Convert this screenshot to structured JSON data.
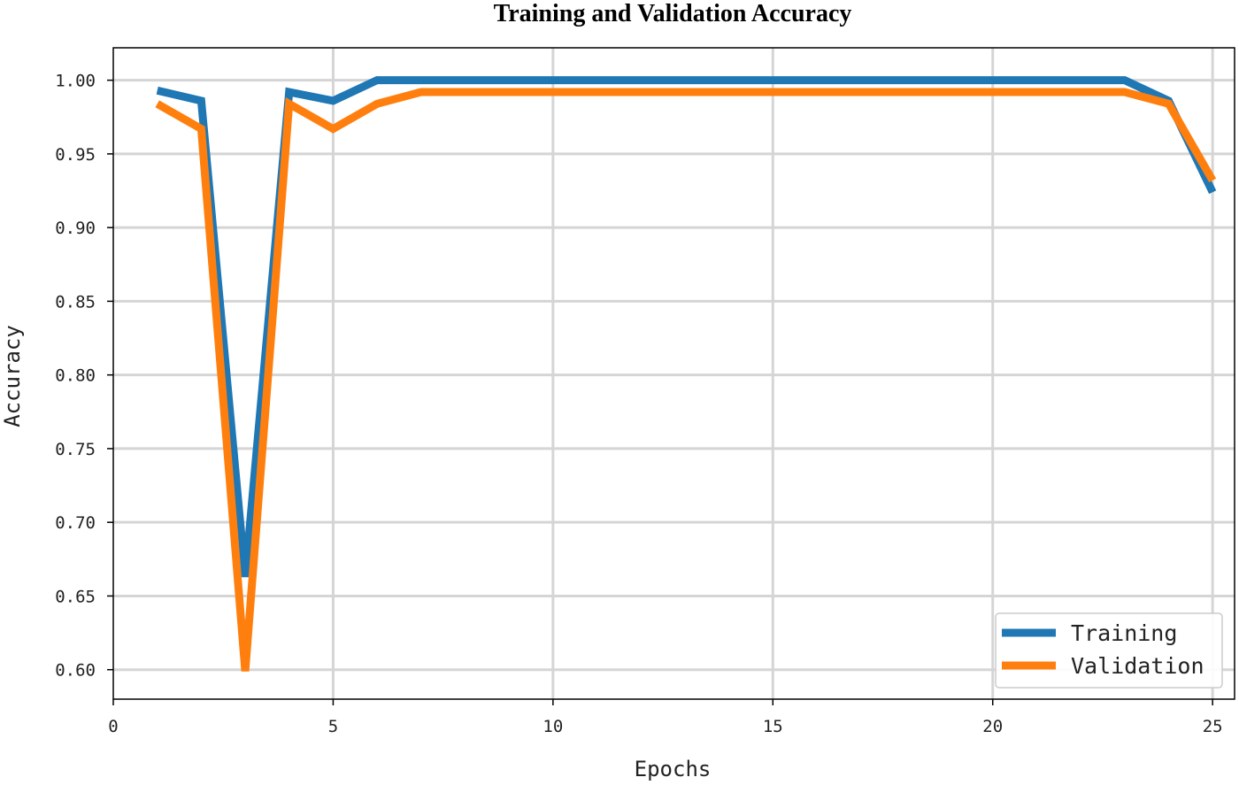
{
  "chart_data": {
    "type": "line",
    "title": "Training and Validation Accuracy",
    "xlabel": "Epochs",
    "ylabel": "Accuracy",
    "xlim": [
      0,
      25.5
    ],
    "ylim": [
      0.58,
      1.022
    ],
    "xticks": [
      0,
      5,
      10,
      15,
      20,
      25
    ],
    "yticks": [
      0.6,
      0.65,
      0.7,
      0.75,
      0.8,
      0.85,
      0.9,
      0.95,
      1.0
    ],
    "xtick_labels": [
      "0",
      "5",
      "10",
      "15",
      "20",
      "25"
    ],
    "ytick_labels": [
      "0.60",
      "0.65",
      "0.70",
      "0.75",
      "0.80",
      "0.85",
      "0.90",
      "0.95",
      "1.00"
    ],
    "grid": true,
    "legend_position": "bottom-right",
    "x": [
      1,
      2,
      3,
      4,
      5,
      6,
      7,
      8,
      9,
      10,
      11,
      12,
      13,
      14,
      15,
      16,
      17,
      18,
      19,
      20,
      21,
      22,
      23,
      24,
      25
    ],
    "series": [
      {
        "name": "Training",
        "color": "#1f77b4",
        "values": [
          0.993,
          0.986,
          0.663,
          0.992,
          0.986,
          1.0,
          1.0,
          1.0,
          1.0,
          1.0,
          1.0,
          1.0,
          1.0,
          1.0,
          1.0,
          1.0,
          1.0,
          1.0,
          1.0,
          1.0,
          1.0,
          1.0,
          1.0,
          0.986,
          0.924
        ]
      },
      {
        "name": "Validation",
        "color": "#ff7f0e",
        "values": [
          0.984,
          0.967,
          0.599,
          0.984,
          0.967,
          0.984,
          0.992,
          0.992,
          0.992,
          0.992,
          0.992,
          0.992,
          0.992,
          0.992,
          0.992,
          0.992,
          0.992,
          0.992,
          0.992,
          0.992,
          0.992,
          0.992,
          0.992,
          0.984,
          0.932
        ]
      }
    ]
  }
}
